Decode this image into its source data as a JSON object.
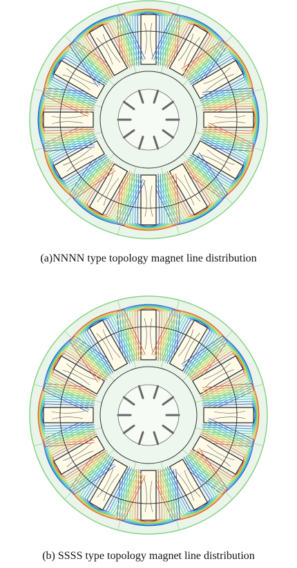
{
  "figures": [
    {
      "caption": "(a)NNNN type topology magnet line distribution"
    },
    {
      "caption": "(b) SSSS type topology magnet line distribution"
    }
  ]
}
